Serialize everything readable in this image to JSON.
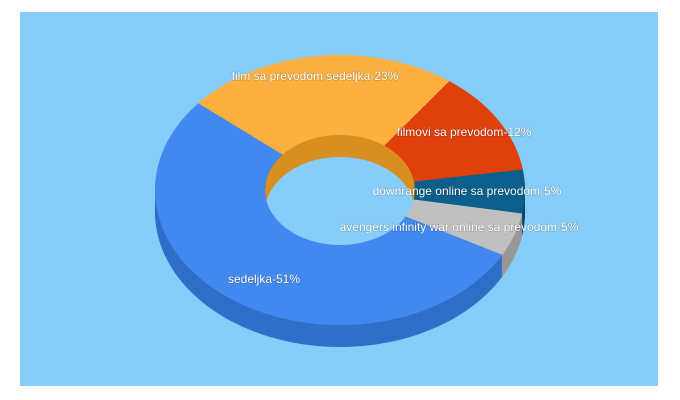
{
  "chart_data": {
    "type": "pie",
    "donut": true,
    "three_d": true,
    "values": [
      23,
      12,
      5,
      5,
      51
    ],
    "value_labels": [
      "film sa prevodom sedeljka-23%",
      "filmovi sa prevodom-12%",
      "downrange online sa prevodom-5%",
      "avengers infinity war online sa prevodom-5%",
      "sedeljka-51%"
    ],
    "colors": [
      "#fbb040",
      "#e0400c",
      "#0b5f8c",
      "#c0c0c0",
      "#4189f0"
    ],
    "side_colors": [
      "#d98f20",
      "#b0300a",
      "#084a6d",
      "#999999",
      "#2f6fc9"
    ],
    "background": "#87cdf9"
  }
}
